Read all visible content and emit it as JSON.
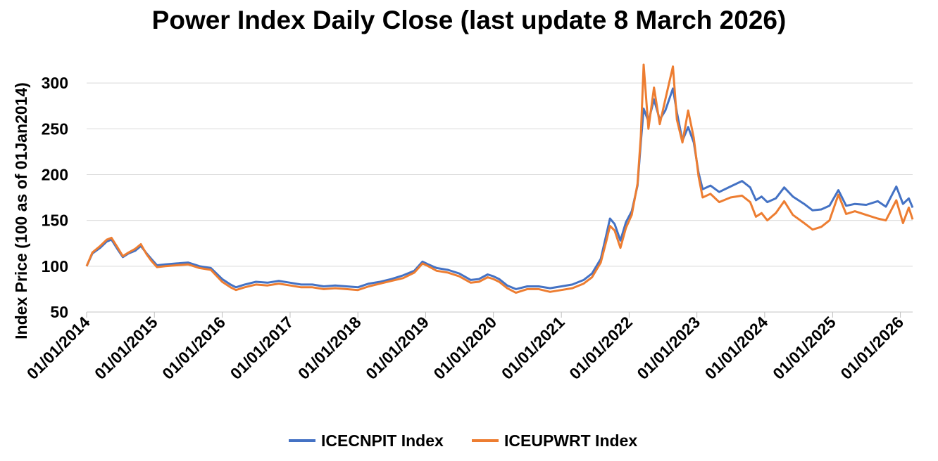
{
  "chart_data": {
    "type": "line",
    "title": "Power Index Daily Close (last update 8 March 2026)",
    "xlabel": "",
    "ylabel": "Index Price (100 as of 01Jan2014)",
    "ylim": [
      50,
      320
    ],
    "yticks": [
      50,
      100,
      150,
      200,
      250,
      300
    ],
    "xlim": [
      "2014-01-01",
      "2026-03-08"
    ],
    "xticks": [
      {
        "date": "2014-01-01",
        "label": "01/01/2014"
      },
      {
        "date": "2015-01-01",
        "label": "01/01/2015"
      },
      {
        "date": "2016-01-01",
        "label": "01/01/2016"
      },
      {
        "date": "2017-01-01",
        "label": "01/01/2017"
      },
      {
        "date": "2018-01-01",
        "label": "01/01/2018"
      },
      {
        "date": "2019-01-01",
        "label": "01/01/2019"
      },
      {
        "date": "2020-01-01",
        "label": "01/01/2020"
      },
      {
        "date": "2021-01-01",
        "label": "01/01/2021"
      },
      {
        "date": "2022-01-01",
        "label": "01/01/2022"
      },
      {
        "date": "2023-01-01",
        "label": "01/01/2023"
      },
      {
        "date": "2024-01-01",
        "label": "01/01/2024"
      },
      {
        "date": "2025-01-01",
        "label": "01/01/2025"
      },
      {
        "date": "2026-01-01",
        "label": "01/01/2026"
      }
    ],
    "grid": true,
    "legend_position": "bottom",
    "series": [
      {
        "name": "ICECNPIT Index",
        "color": "#4472c4",
        "points": [
          [
            "2014-01-01",
            100
          ],
          [
            "2014-02-01",
            114
          ],
          [
            "2014-03-15",
            120
          ],
          [
            "2014-04-20",
            127
          ],
          [
            "2014-05-15",
            129
          ],
          [
            "2014-06-15",
            119
          ],
          [
            "2014-07-15",
            110
          ],
          [
            "2014-08-15",
            114
          ],
          [
            "2014-09-20",
            117
          ],
          [
            "2014-10-20",
            122
          ],
          [
            "2014-11-20",
            114
          ],
          [
            "2014-12-15",
            108
          ],
          [
            "2015-01-15",
            101
          ],
          [
            "2015-03-01",
            102
          ],
          [
            "2015-05-01",
            103
          ],
          [
            "2015-07-01",
            104
          ],
          [
            "2015-09-01",
            100
          ],
          [
            "2015-11-01",
            98
          ],
          [
            "2016-01-01",
            86
          ],
          [
            "2016-02-15",
            80
          ],
          [
            "2016-03-15",
            77
          ],
          [
            "2016-05-01",
            80
          ],
          [
            "2016-07-01",
            83
          ],
          [
            "2016-09-01",
            82
          ],
          [
            "2016-11-01",
            84
          ],
          [
            "2017-01-01",
            82
          ],
          [
            "2017-03-01",
            80
          ],
          [
            "2017-05-01",
            80
          ],
          [
            "2017-07-01",
            78
          ],
          [
            "2017-09-01",
            79
          ],
          [
            "2017-11-01",
            78
          ],
          [
            "2018-01-01",
            77
          ],
          [
            "2018-03-01",
            81
          ],
          [
            "2018-05-01",
            83
          ],
          [
            "2018-07-01",
            86
          ],
          [
            "2018-09-01",
            90
          ],
          [
            "2018-11-01",
            95
          ],
          [
            "2018-12-15",
            105
          ],
          [
            "2019-01-15",
            102
          ],
          [
            "2019-03-01",
            98
          ],
          [
            "2019-05-01",
            96
          ],
          [
            "2019-07-01",
            92
          ],
          [
            "2019-09-01",
            85
          ],
          [
            "2019-10-15",
            86
          ],
          [
            "2019-12-01",
            91
          ],
          [
            "2020-01-01",
            89
          ],
          [
            "2020-02-01",
            86
          ],
          [
            "2020-03-15",
            79
          ],
          [
            "2020-05-01",
            75
          ],
          [
            "2020-07-01",
            78
          ],
          [
            "2020-09-01",
            78
          ],
          [
            "2020-11-01",
            76
          ],
          [
            "2021-01-01",
            78
          ],
          [
            "2021-03-01",
            80
          ],
          [
            "2021-05-01",
            85
          ],
          [
            "2021-06-15",
            92
          ],
          [
            "2021-08-01",
            108
          ],
          [
            "2021-09-01",
            135
          ],
          [
            "2021-09-20",
            152
          ],
          [
            "2021-10-15",
            146
          ],
          [
            "2021-11-15",
            128
          ],
          [
            "2021-12-15",
            148
          ],
          [
            "2022-01-15",
            160
          ],
          [
            "2022-02-15",
            188
          ],
          [
            "2022-03-05",
            235
          ],
          [
            "2022-03-20",
            272
          ],
          [
            "2022-04-15",
            258
          ],
          [
            "2022-05-15",
            282
          ],
          [
            "2022-06-15",
            260
          ],
          [
            "2022-07-15",
            270
          ],
          [
            "2022-08-25",
            294
          ],
          [
            "2022-09-15",
            268
          ],
          [
            "2022-10-15",
            237
          ],
          [
            "2022-11-15",
            252
          ],
          [
            "2022-12-15",
            235
          ],
          [
            "2023-01-10",
            202
          ],
          [
            "2023-02-01",
            184
          ],
          [
            "2023-03-15",
            188
          ],
          [
            "2023-05-01",
            181
          ],
          [
            "2023-07-01",
            187
          ],
          [
            "2023-09-01",
            193
          ],
          [
            "2023-10-15",
            186
          ],
          [
            "2023-11-15",
            172
          ],
          [
            "2023-12-15",
            176
          ],
          [
            "2024-01-15",
            170
          ],
          [
            "2024-03-01",
            174
          ],
          [
            "2024-04-15",
            186
          ],
          [
            "2024-06-01",
            176
          ],
          [
            "2024-08-01",
            168
          ],
          [
            "2024-09-15",
            161
          ],
          [
            "2024-11-01",
            162
          ],
          [
            "2024-12-15",
            166
          ],
          [
            "2025-02-01",
            183
          ],
          [
            "2025-03-15",
            166
          ],
          [
            "2025-05-01",
            168
          ],
          [
            "2025-07-01",
            167
          ],
          [
            "2025-09-01",
            171
          ],
          [
            "2025-10-15",
            165
          ],
          [
            "2025-12-10",
            187
          ],
          [
            "2026-01-15",
            168
          ],
          [
            "2026-02-15",
            174
          ],
          [
            "2026-03-08",
            164
          ]
        ]
      },
      {
        "name": "ICEUPWRT Index",
        "color": "#ed7d31",
        "points": [
          [
            "2014-01-01",
            100
          ],
          [
            "2014-02-01",
            115
          ],
          [
            "2014-03-15",
            122
          ],
          [
            "2014-04-20",
            129
          ],
          [
            "2014-05-15",
            131
          ],
          [
            "2014-06-15",
            121
          ],
          [
            "2014-07-15",
            111
          ],
          [
            "2014-08-15",
            115
          ],
          [
            "2014-09-20",
            119
          ],
          [
            "2014-10-20",
            124
          ],
          [
            "2014-11-20",
            113
          ],
          [
            "2014-12-15",
            106
          ],
          [
            "2015-01-15",
            99
          ],
          [
            "2015-03-01",
            100
          ],
          [
            "2015-05-01",
            101
          ],
          [
            "2015-07-01",
            102
          ],
          [
            "2015-09-01",
            98
          ],
          [
            "2015-11-01",
            96
          ],
          [
            "2016-01-01",
            83
          ],
          [
            "2016-02-15",
            77
          ],
          [
            "2016-03-15",
            74
          ],
          [
            "2016-05-01",
            77
          ],
          [
            "2016-07-01",
            80
          ],
          [
            "2016-09-01",
            79
          ],
          [
            "2016-11-01",
            81
          ],
          [
            "2017-01-01",
            79
          ],
          [
            "2017-03-01",
            77
          ],
          [
            "2017-05-01",
            77
          ],
          [
            "2017-07-01",
            75
          ],
          [
            "2017-09-01",
            76
          ],
          [
            "2017-11-01",
            75
          ],
          [
            "2018-01-01",
            74
          ],
          [
            "2018-03-01",
            78
          ],
          [
            "2018-05-01",
            81
          ],
          [
            "2018-07-01",
            84
          ],
          [
            "2018-09-01",
            87
          ],
          [
            "2018-11-01",
            93
          ],
          [
            "2018-12-15",
            103
          ],
          [
            "2019-01-15",
            100
          ],
          [
            "2019-03-01",
            95
          ],
          [
            "2019-05-01",
            93
          ],
          [
            "2019-07-01",
            89
          ],
          [
            "2019-09-01",
            82
          ],
          [
            "2019-10-15",
            83
          ],
          [
            "2019-12-01",
            88
          ],
          [
            "2020-01-01",
            86
          ],
          [
            "2020-02-01",
            83
          ],
          [
            "2020-03-15",
            76
          ],
          [
            "2020-05-01",
            71
          ],
          [
            "2020-07-01",
            75
          ],
          [
            "2020-09-01",
            75
          ],
          [
            "2020-11-01",
            72
          ],
          [
            "2021-01-01",
            74
          ],
          [
            "2021-03-01",
            76
          ],
          [
            "2021-05-01",
            81
          ],
          [
            "2021-06-15",
            88
          ],
          [
            "2021-08-01",
            104
          ],
          [
            "2021-09-01",
            128
          ],
          [
            "2021-09-20",
            144
          ],
          [
            "2021-10-15",
            139
          ],
          [
            "2021-11-15",
            120
          ],
          [
            "2021-12-15",
            142
          ],
          [
            "2022-01-15",
            156
          ],
          [
            "2022-02-15",
            190
          ],
          [
            "2022-03-05",
            242
          ],
          [
            "2022-03-20",
            320
          ],
          [
            "2022-04-15",
            250
          ],
          [
            "2022-05-15",
            295
          ],
          [
            "2022-06-15",
            255
          ],
          [
            "2022-07-15",
            282
          ],
          [
            "2022-08-25",
            318
          ],
          [
            "2022-09-15",
            260
          ],
          [
            "2022-10-15",
            235
          ],
          [
            "2022-11-15",
            270
          ],
          [
            "2022-12-15",
            240
          ],
          [
            "2023-01-10",
            198
          ],
          [
            "2023-02-01",
            175
          ],
          [
            "2023-03-15",
            179
          ],
          [
            "2023-05-01",
            170
          ],
          [
            "2023-07-01",
            175
          ],
          [
            "2023-09-01",
            177
          ],
          [
            "2023-10-15",
            170
          ],
          [
            "2023-11-15",
            154
          ],
          [
            "2023-12-15",
            158
          ],
          [
            "2024-01-15",
            150
          ],
          [
            "2024-03-01",
            158
          ],
          [
            "2024-04-15",
            171
          ],
          [
            "2024-06-01",
            156
          ],
          [
            "2024-08-01",
            147
          ],
          [
            "2024-09-15",
            140
          ],
          [
            "2024-11-01",
            143
          ],
          [
            "2024-12-15",
            150
          ],
          [
            "2025-02-01",
            178
          ],
          [
            "2025-03-15",
            157
          ],
          [
            "2025-05-01",
            160
          ],
          [
            "2025-07-01",
            156
          ],
          [
            "2025-09-01",
            152
          ],
          [
            "2025-10-15",
            150
          ],
          [
            "2025-12-10",
            172
          ],
          [
            "2026-01-15",
            147
          ],
          [
            "2026-02-15",
            164
          ],
          [
            "2026-03-08",
            151
          ]
        ]
      }
    ]
  }
}
